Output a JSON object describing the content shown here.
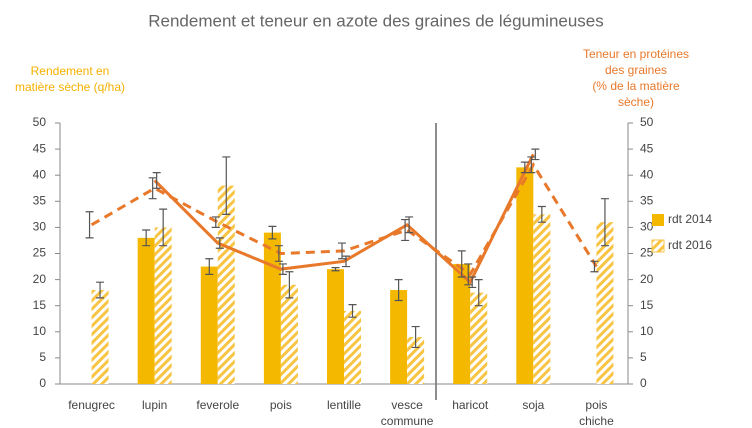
{
  "chart_data": {
    "type": "bar-line",
    "title": "Rendement et teneur en azote des graines de légumineuses",
    "y_label": [
      "Rendement en",
      "matière sèche (q/ha)"
    ],
    "y2_label": [
      "Teneur en protéines",
      "des graines",
      "(% de la matière",
      "sèche)"
    ],
    "categories": [
      "fenugrec",
      "lupin",
      "feverole",
      "pois",
      "lentille",
      "vesce commune",
      "haricot",
      "soja",
      "pois chiche"
    ],
    "ylim": [
      0,
      50
    ],
    "yticks": [
      0,
      5,
      10,
      15,
      20,
      25,
      30,
      35,
      40,
      45,
      50
    ],
    "y2lim": [
      0,
      50
    ],
    "y2ticks": [
      0,
      5,
      10,
      15,
      20,
      25,
      30,
      35,
      40,
      45,
      50
    ],
    "legend": "right",
    "series": [
      {
        "name": "rdt 2014",
        "kind": "bar",
        "color": "#f5b800",
        "values": [
          null,
          28,
          22.5,
          29,
          22,
          18,
          23,
          41.5,
          null
        ],
        "errors": [
          null,
          1.5,
          1.5,
          1.2,
          0.3,
          2,
          2.5,
          1,
          null
        ]
      },
      {
        "name": "rdt 2016",
        "kind": "bar",
        "hatch": true,
        "color": "#f7c444",
        "values": [
          18,
          30,
          38,
          19,
          14,
          9,
          17.5,
          32.5,
          31
        ],
        "errors": [
          1.5,
          3.5,
          5.5,
          2.5,
          1.2,
          2,
          2.5,
          1.5,
          4.5
        ]
      },
      {
        "kind": "line",
        "axis": "y2",
        "color": "#e8782a",
        "values": [
          null,
          39,
          27,
          22,
          23.5,
          30.5,
          19.5,
          44,
          null
        ],
        "errors": [
          null,
          1.5,
          1,
          1,
          1,
          1.5,
          1,
          1,
          null
        ]
      },
      {
        "kind": "line",
        "axis": "y2",
        "dashed": true,
        "color": "#e8782a",
        "values": [
          30.5,
          37.5,
          31,
          25,
          25.5,
          29.5,
          21,
          42,
          22.5
        ],
        "errors": [
          2.5,
          2,
          1,
          1.5,
          1.5,
          2,
          2,
          1.5,
          1
        ]
      }
    ]
  }
}
